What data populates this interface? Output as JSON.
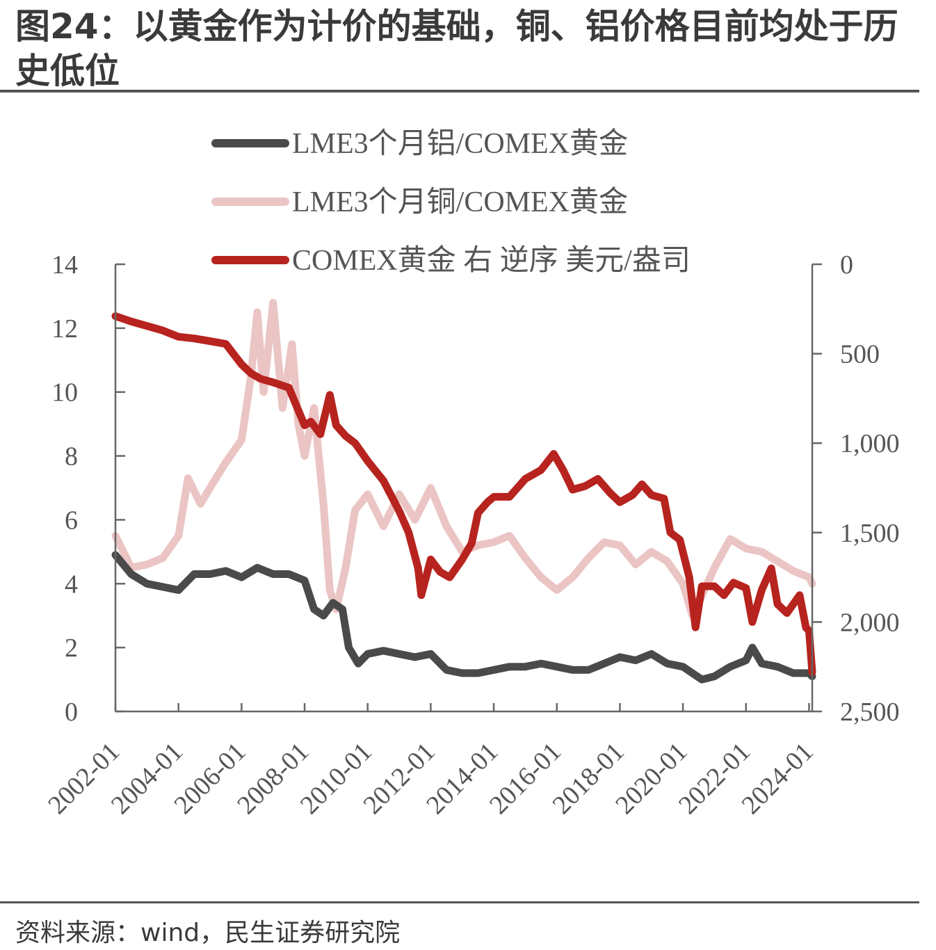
{
  "title": "图24：以黄金作为计价的基础，铜、铝价格目前均处于历史低位",
  "source": "资料来源：wind，民生证券研究院",
  "colors": {
    "aluminum": "#4a4a4a",
    "copper": "#ebc4c4",
    "gold": "#b7231e",
    "axis": "#666666",
    "text": "#555555"
  },
  "chart_data": {
    "type": "line",
    "legend": [
      "LME3个月铝/COMEX黄金",
      "LME3个月铜/COMEX黄金",
      "COMEX黄金 右 逆序 美元/盎司"
    ],
    "legend_position": "top",
    "grid": false,
    "x_ticks": [
      "2002-01",
      "2004-01",
      "2006-01",
      "2008-01",
      "2010-01",
      "2012-01",
      "2014-01",
      "2016-01",
      "2018-01",
      "2020-01",
      "2022-01",
      "2024-01"
    ],
    "x_range": [
      2002.0,
      2024.1
    ],
    "left_axis": {
      "ylim": [
        0,
        14
      ],
      "ticks": [
        "0",
        "2",
        "4",
        "6",
        "8",
        "10",
        "12",
        "14"
      ]
    },
    "right_axis": {
      "ylim": [
        0,
        2500
      ],
      "inverted": true,
      "ticks": [
        "0",
        "500",
        "1,000",
        "1,500",
        "2,000",
        "2,500"
      ]
    },
    "series": [
      {
        "name": "LME3个月铝/COMEX黄金",
        "axis": "left",
        "x": [
          2002.0,
          2002.5,
          2003.0,
          2003.5,
          2004.0,
          2004.5,
          2005.0,
          2005.5,
          2006.0,
          2006.5,
          2007.0,
          2007.5,
          2008.0,
          2008.3,
          2008.6,
          2008.9,
          2009.2,
          2009.4,
          2009.7,
          2010.0,
          2010.5,
          2011.0,
          2011.5,
          2012.0,
          2012.5,
          2013.0,
          2013.5,
          2014.0,
          2014.5,
          2015.0,
          2015.5,
          2016.0,
          2016.5,
          2017.0,
          2017.5,
          2018.0,
          2018.5,
          2019.0,
          2019.5,
          2020.0,
          2020.3,
          2020.6,
          2021.0,
          2021.5,
          2022.0,
          2022.2,
          2022.5,
          2023.0,
          2023.5,
          2024.0,
          2024.1
        ],
        "values": [
          4.9,
          4.3,
          4.0,
          3.9,
          3.8,
          4.3,
          4.3,
          4.4,
          4.2,
          4.5,
          4.3,
          4.3,
          4.1,
          3.2,
          3.0,
          3.4,
          3.2,
          2.0,
          1.5,
          1.8,
          1.9,
          1.8,
          1.7,
          1.8,
          1.3,
          1.2,
          1.2,
          1.3,
          1.4,
          1.4,
          1.5,
          1.4,
          1.3,
          1.3,
          1.5,
          1.7,
          1.6,
          1.8,
          1.5,
          1.4,
          1.2,
          1.0,
          1.1,
          1.4,
          1.6,
          2.0,
          1.5,
          1.4,
          1.2,
          1.2,
          1.1
        ]
      },
      {
        "name": "LME3个月铜/COMEX黄金",
        "axis": "left",
        "x": [
          2002.0,
          2002.5,
          2003.0,
          2003.5,
          2004.0,
          2004.3,
          2004.7,
          2005.0,
          2005.5,
          2006.0,
          2006.3,
          2006.5,
          2006.7,
          2007.0,
          2007.3,
          2007.6,
          2007.8,
          2008.0,
          2008.3,
          2008.6,
          2008.8,
          2009.0,
          2009.3,
          2009.6,
          2010.0,
          2010.5,
          2011.0,
          2011.5,
          2012.0,
          2012.5,
          2013.0,
          2013.5,
          2014.0,
          2014.5,
          2015.0,
          2015.5,
          2016.0,
          2016.5,
          2017.0,
          2017.5,
          2018.0,
          2018.5,
          2019.0,
          2019.5,
          2020.0,
          2020.3,
          2020.5,
          2021.0,
          2021.5,
          2022.0,
          2022.5,
          2023.0,
          2023.5,
          2024.0,
          2024.1
        ],
        "values": [
          5.5,
          4.5,
          4.6,
          4.8,
          5.5,
          7.3,
          6.5,
          7.0,
          7.8,
          8.5,
          10.5,
          12.5,
          10.0,
          12.8,
          9.5,
          11.5,
          9.0,
          8.0,
          9.5,
          6.5,
          3.8,
          3.2,
          4.5,
          6.3,
          6.8,
          5.8,
          6.8,
          6.0,
          7.0,
          5.8,
          5.0,
          5.2,
          5.3,
          5.5,
          4.8,
          4.2,
          3.8,
          4.2,
          4.8,
          5.3,
          5.2,
          4.6,
          5.0,
          4.7,
          4.0,
          3.0,
          3.4,
          4.5,
          5.4,
          5.1,
          5.0,
          4.7,
          4.4,
          4.2,
          4.0
        ]
      },
      {
        "name": "COMEX黄金 右 逆序 美元/盎司",
        "axis": "right",
        "x": [
          2002.0,
          2002.5,
          2003.0,
          2003.5,
          2004.0,
          2004.5,
          2005.0,
          2005.5,
          2006.0,
          2006.3,
          2006.6,
          2007.0,
          2007.5,
          2008.0,
          2008.2,
          2008.5,
          2008.8,
          2009.0,
          2009.3,
          2009.6,
          2010.0,
          2010.5,
          2011.0,
          2011.3,
          2011.6,
          2011.7,
          2012.0,
          2012.3,
          2012.6,
          2013.0,
          2013.3,
          2013.5,
          2013.8,
          2014.0,
          2014.5,
          2015.0,
          2015.5,
          2015.9,
          2016.2,
          2016.5,
          2016.9,
          2017.3,
          2017.7,
          2018.0,
          2018.4,
          2018.7,
          2019.0,
          2019.4,
          2019.6,
          2019.9,
          2020.2,
          2020.4,
          2020.6,
          2021.0,
          2021.3,
          2021.6,
          2022.0,
          2022.2,
          2022.5,
          2022.8,
          2023.0,
          2023.3,
          2023.7,
          2023.9,
          2024.0,
          2024.1
        ],
        "values": [
          290,
          320,
          345,
          370,
          405,
          415,
          430,
          445,
          560,
          610,
          640,
          660,
          690,
          900,
          880,
          950,
          730,
          900,
          960,
          1000,
          1100,
          1210,
          1380,
          1500,
          1700,
          1850,
          1650,
          1720,
          1750,
          1650,
          1560,
          1390,
          1330,
          1300,
          1300,
          1200,
          1150,
          1060,
          1150,
          1260,
          1240,
          1200,
          1280,
          1330,
          1290,
          1230,
          1290,
          1310,
          1500,
          1540,
          1750,
          2030,
          1800,
          1800,
          1850,
          1780,
          1810,
          2000,
          1820,
          1700,
          1900,
          1950,
          1850,
          2030,
          2050,
          2280
        ]
      }
    ]
  }
}
